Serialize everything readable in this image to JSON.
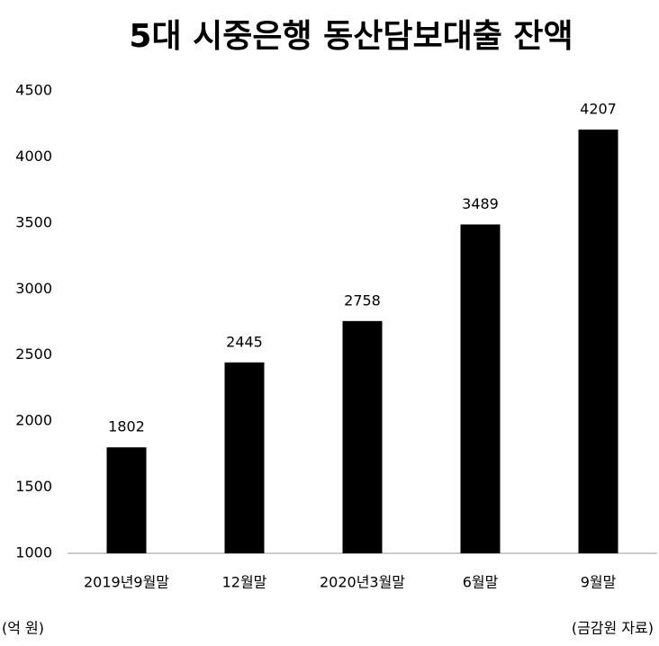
{
  "chart_data": {
    "type": "bar",
    "title": "5대 시중은행 동산담보대출 잔액",
    "categories": [
      "2019년9월말",
      "12월말",
      "2020년3월말",
      "6월말",
      "9월말"
    ],
    "values": [
      1802,
      2445,
      2758,
      3489,
      4207
    ],
    "color": "#000000",
    "ylim": [
      1000,
      4500
    ],
    "yticks": [
      1000,
      1500,
      2000,
      2500,
      3000,
      3500,
      4000,
      4500
    ],
    "grid": false,
    "unit_note": "(억 원)",
    "source_note": "(금감원 자료)"
  }
}
